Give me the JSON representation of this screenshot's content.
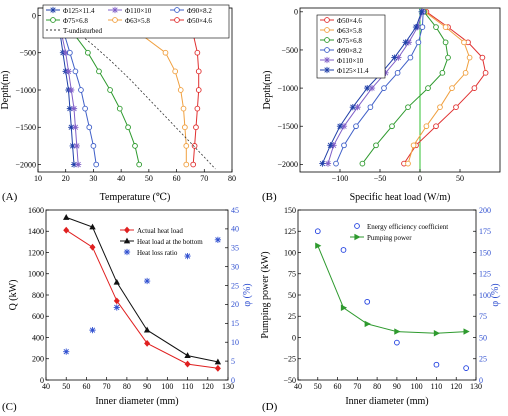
{
  "chart_data": [
    {
      "panel": "(A)",
      "type": "line",
      "xlabel": "Temperature (℃)",
      "ylabel": "Depth(m)",
      "xlim": [
        10,
        80
      ],
      "ylim": [
        -2100,
        100
      ],
      "xticks": [
        10,
        20,
        30,
        40,
        50,
        60,
        70,
        80
      ],
      "yticks": [
        0,
        -500,
        -1000,
        -1500,
        -2000
      ],
      "series": [
        {
          "name": "Φ125×11.4",
          "color": "#1f3fa8",
          "marker": "star",
          "x": [
            17,
            18,
            19,
            20,
            21,
            21.5,
            22,
            22.5,
            23
          ],
          "y": [
            0,
            -250,
            -500,
            -750,
            -1000,
            -1250,
            -1500,
            -1750,
            -2000
          ]
        },
        {
          "name": "Φ110×10",
          "color": "#8060c8",
          "marker": "open-star",
          "x": [
            17,
            18.5,
            20,
            21,
            22,
            23,
            23.5,
            24,
            24.5
          ],
          "y": [
            0,
            -250,
            -500,
            -750,
            -1000,
            -1250,
            -1500,
            -1750,
            -2000
          ]
        },
        {
          "name": "Φ90×8.2",
          "color": "#4060c8",
          "marker": "circle",
          "x": [
            17,
            19.5,
            21.5,
            23.5,
            25.5,
            27,
            28.5,
            30,
            31
          ],
          "y": [
            0,
            -250,
            -500,
            -750,
            -1000,
            -1250,
            -1500,
            -1750,
            -2000
          ]
        },
        {
          "name": "Φ75×6.8",
          "color": "#2e9a2e",
          "marker": "circle",
          "x": [
            18,
            23,
            28,
            32,
            36,
            39.5,
            42.5,
            45,
            46.5
          ],
          "y": [
            0,
            -250,
            -500,
            -750,
            -1000,
            -1250,
            -1500,
            -1750,
            -2000
          ]
        },
        {
          "name": "Φ63×5.8",
          "color": "#f0a040",
          "marker": "circle",
          "x": [
            27,
            47,
            56,
            59.5,
            61.5,
            62.5,
            63,
            63.5,
            63.5
          ],
          "y": [
            0,
            -250,
            -500,
            -750,
            -1000,
            -1250,
            -1500,
            -1750,
            -2000
          ]
        },
        {
          "name": "Φ50×4.6",
          "color": "#e03030",
          "marker": "circle",
          "x": [
            60,
            66,
            67.5,
            68,
            68,
            67.5,
            67,
            66.5,
            66
          ],
          "y": [
            0,
            -250,
            -500,
            -750,
            -1000,
            -1250,
            -1500,
            -1750,
            -2000
          ]
        },
        {
          "name": "T-undisturbed",
          "color": "#333333",
          "marker": "none",
          "dashed": true,
          "x": [
            17,
            20,
            25,
            30,
            36,
            43,
            52,
            61,
            70,
            74
          ],
          "y": [
            0,
            -100,
            -250,
            -400,
            -600,
            -850,
            -1200,
            -1550,
            -1900,
            -2060
          ]
        }
      ]
    },
    {
      "panel": "(B)",
      "type": "line",
      "xlabel": "Specific heat load (W/m)",
      "ylabel": "Depth(m)",
      "xlim": [
        -150,
        100
      ],
      "ylim": [
        -2100,
        50
      ],
      "xticks": [
        -100,
        -50,
        0,
        50
      ],
      "yticks": [
        0,
        -500,
        -1000,
        -1500,
        -2000
      ],
      "vline": 0,
      "series": [
        {
          "name": "Φ50×4.6",
          "color": "#e03030",
          "marker": "circle",
          "x": [
            8,
            35,
            60,
            78,
            82,
            68,
            45,
            20,
            -5,
            -20
          ],
          "y": [
            0,
            -200,
            -400,
            -600,
            -800,
            -1000,
            -1250,
            -1500,
            -1750,
            -1990
          ]
        },
        {
          "name": "Φ63×5.8",
          "color": "#f0a040",
          "marker": "circle",
          "x": [
            6,
            32,
            55,
            62,
            57,
            40,
            25,
            8,
            -8,
            -15
          ],
          "y": [
            0,
            -200,
            -400,
            -600,
            -800,
            -1000,
            -1250,
            -1500,
            -1750,
            -1990
          ]
        },
        {
          "name": "Φ75×6.8",
          "color": "#2e9a2e",
          "marker": "circle",
          "x": [
            5,
            20,
            32,
            35,
            28,
            10,
            -15,
            -35,
            -55,
            -72
          ],
          "y": [
            0,
            -200,
            -400,
            -600,
            -800,
            -1000,
            -1250,
            -1500,
            -1750,
            -1990
          ]
        },
        {
          "name": "Φ90×8.2",
          "color": "#4060c8",
          "marker": "circle",
          "x": [
            4,
            3,
            -2,
            -12,
            -28,
            -45,
            -62,
            -80,
            -95,
            -105
          ],
          "y": [
            0,
            -200,
            -400,
            -600,
            -800,
            -1000,
            -1250,
            -1500,
            -1750,
            -1990
          ]
        },
        {
          "name": "Φ110×10",
          "color": "#8060c8",
          "marker": "open-star",
          "x": [
            3,
            -3,
            -14,
            -27,
            -43,
            -60,
            -78,
            -95,
            -108,
            -115
          ],
          "y": [
            0,
            -200,
            -400,
            -600,
            -800,
            -1000,
            -1250,
            -1500,
            -1750,
            -1990
          ]
        },
        {
          "name": "Φ125×11.4",
          "color": "#1f3fa8",
          "marker": "star",
          "x": [
            2,
            -5,
            -18,
            -32,
            -48,
            -66,
            -84,
            -100,
            -112,
            -122
          ],
          "y": [
            0,
            -200,
            -400,
            -600,
            -800,
            -1000,
            -1250,
            -1500,
            -1750,
            -1990
          ]
        }
      ]
    },
    {
      "panel": "(C)",
      "type": "line",
      "xlabel": "Inner diameter (mm)",
      "ylabel": "Q (kW)",
      "y2label": "φ (%)",
      "xlim": [
        40,
        130
      ],
      "ylim": [
        0,
        1600
      ],
      "y2lim": [
        0,
        45
      ],
      "xticks": [
        40,
        50,
        60,
        70,
        80,
        90,
        100,
        110,
        120,
        130
      ],
      "yticks": [
        0,
        200,
        400,
        600,
        800,
        1000,
        1200,
        1400,
        1600
      ],
      "y2ticks": [
        0,
        5,
        10,
        15,
        20,
        25,
        30,
        35,
        40,
        45
      ],
      "series": [
        {
          "name": "Actual heat load",
          "color": "#e02020",
          "marker": "diamond",
          "axis": "left",
          "x": [
            50,
            63,
            75,
            90,
            110,
            125
          ],
          "y": [
            1410,
            1250,
            745,
            345,
            150,
            110
          ]
        },
        {
          "name": "Heat load at the bottom",
          "color": "#111111",
          "marker": "triangle",
          "axis": "left",
          "x": [
            50,
            63,
            75,
            90,
            110,
            125
          ],
          "y": [
            1530,
            1440,
            920,
            470,
            230,
            170
          ]
        },
        {
          "name": "Heat loss ratio",
          "color": "#3050d0",
          "marker": "asterisk",
          "axis": "right",
          "line": false,
          "x": [
            50,
            63,
            75,
            90,
            110,
            125
          ],
          "y": [
            7.5,
            13.2,
            19.2,
            26.2,
            32.8,
            37.1
          ]
        }
      ]
    },
    {
      "panel": "(D)",
      "type": "line",
      "xlabel": "Inner diameter (mm)",
      "ylabel": "Pumping power (kW)",
      "y2label": "φ (%)",
      "xlim": [
        40,
        130
      ],
      "ylim": [
        -50,
        150
      ],
      "y2lim": [
        0,
        200
      ],
      "xticks": [
        40,
        50,
        60,
        70,
        80,
        90,
        100,
        110,
        120,
        130
      ],
      "yticks": [
        -50,
        -25,
        0,
        25,
        50,
        75,
        100,
        125,
        150
      ],
      "y2ticks": [
        0,
        25,
        50,
        75,
        100,
        125,
        150,
        175,
        200
      ],
      "series": [
        {
          "name": "Energy efficiency coefficient",
          "color": "#2040e0",
          "marker": "circle",
          "axis": "right",
          "line": false,
          "x": [
            50,
            63,
            75,
            90,
            110,
            125
          ],
          "y": [
            175,
            153,
            92,
            44,
            18,
            14
          ]
        },
        {
          "name": "Pumping power",
          "color": "#2e9a2e",
          "marker": "triangle-right",
          "axis": "left",
          "x": [
            50,
            63,
            75,
            90,
            110,
            125
          ],
          "y": [
            108,
            35,
            16,
            7,
            5,
            7
          ]
        }
      ]
    }
  ]
}
